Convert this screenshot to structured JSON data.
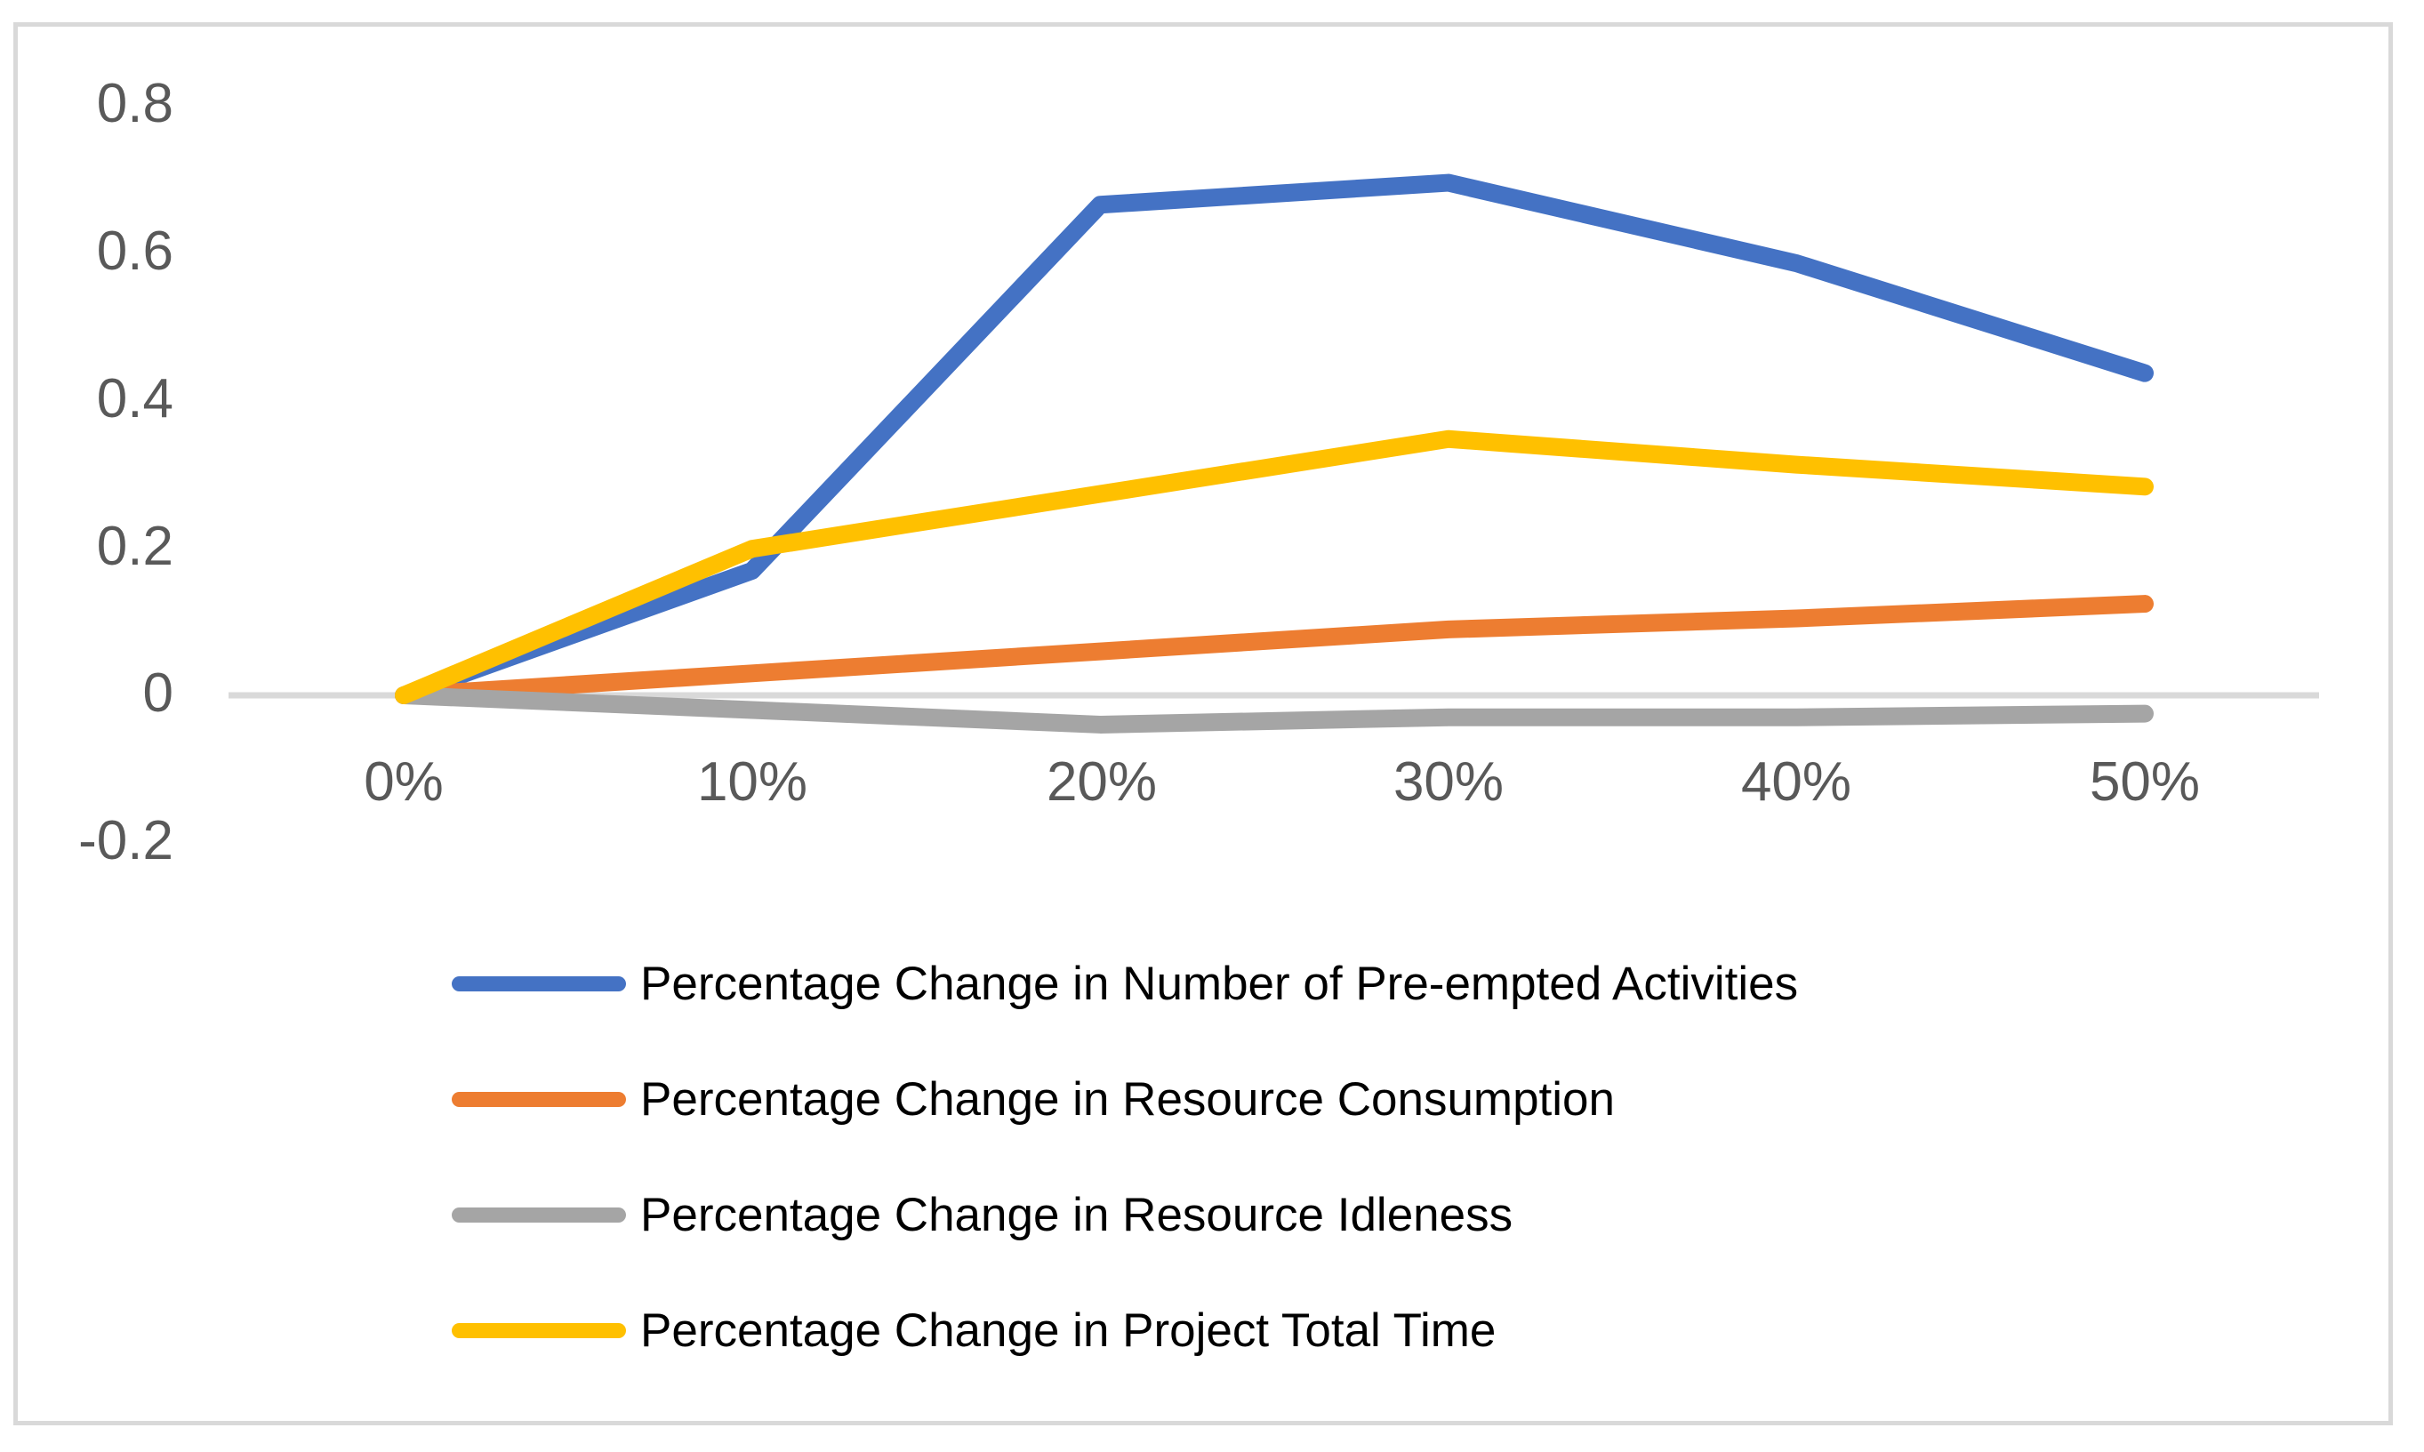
{
  "chart_data": {
    "type": "line",
    "title": "",
    "xlabel": "",
    "ylabel": "",
    "x_categories": [
      "0%",
      "10%",
      "20%",
      "30%",
      "40%",
      "50%"
    ],
    "series": [
      {
        "name": "Percentage Change in Number of Pre-empted Activities",
        "color": "#4472C4",
        "values": [
          0,
          0.17,
          0.67,
          0.7,
          0.59,
          0.44
        ]
      },
      {
        "name": "Percentage Change in Resource Consumption",
        "color": "#ED7D31",
        "values": [
          0,
          0.03,
          0.06,
          0.09,
          0.105,
          0.125
        ]
      },
      {
        "name": "Percentage Change in Resource Idleness",
        "color": "#A5A5A5",
        "values": [
          0,
          -0.02,
          -0.04,
          -0.03,
          -0.03,
          -0.025
        ]
      },
      {
        "name": "Percentage Change in Project Total Time",
        "color": "#FFC000",
        "values": [
          0,
          0.2,
          0.275,
          0.35,
          0.315,
          0.285
        ]
      }
    ],
    "y_ticks": [
      0.8,
      0.6,
      0.4,
      0.2,
      0,
      -0.2
    ],
    "y_tick_labels": [
      "0.8",
      "0.6",
      "0.4",
      "0.2",
      "0",
      "-0.2"
    ],
    "ylim": [
      -0.2,
      0.8
    ],
    "grid": false,
    "legend_position": "bottom-left"
  },
  "styles": {
    "axis_line_color": "#D9D9D9",
    "frame_border_color": "#D9D9D9",
    "tick_text_color": "#595959",
    "legend_text_color": "#000000",
    "background": "#FFFFFF"
  }
}
